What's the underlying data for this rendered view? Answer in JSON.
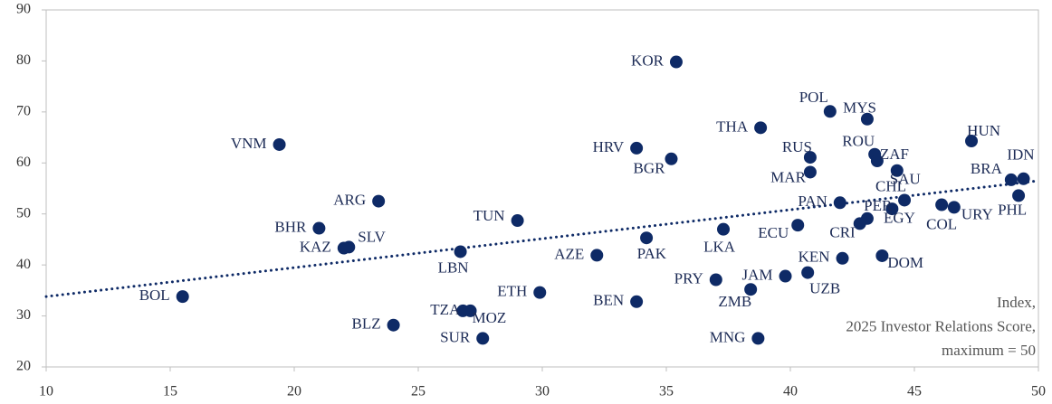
{
  "chart_data": {
    "type": "scatter",
    "points": [
      {
        "label": "KOR",
        "x": 35.4,
        "y": 79.8
      },
      {
        "label": "POL",
        "x": 41.6,
        "y": 70.1
      },
      {
        "label": "MYS",
        "x": 43.1,
        "y": 68.6
      },
      {
        "label": "THA",
        "x": 38.8,
        "y": 66.9
      },
      {
        "label": "HUN",
        "x": 47.3,
        "y": 64.3
      },
      {
        "label": "VNM",
        "x": 19.4,
        "y": 63.6
      },
      {
        "label": "HRV",
        "x": 33.8,
        "y": 62.9
      },
      {
        "label": "ROU",
        "x": 43.4,
        "y": 61.7
      },
      {
        "label": "RUS",
        "x": 40.8,
        "y": 61.1
      },
      {
        "label": "BGR",
        "x": 35.2,
        "y": 60.8
      },
      {
        "label": "ZAF",
        "x": 43.5,
        "y": 60.4
      },
      {
        "label": "IDN",
        "x": 49.4,
        "y": 56.9
      },
      {
        "label": "BRA",
        "x": 48.9,
        "y": 56.7
      },
      {
        "label": "SAU",
        "x": 44.3,
        "y": 58.5
      },
      {
        "label": "MAR",
        "x": 40.8,
        "y": 58.2
      },
      {
        "label": "ARG",
        "x": 23.4,
        "y": 52.5
      },
      {
        "label": "CHL",
        "x": 44.6,
        "y": 52.7
      },
      {
        "label": "PAN",
        "x": 42.0,
        "y": 52.2
      },
      {
        "label": "PHL",
        "x": 49.2,
        "y": 53.6
      },
      {
        "label": "COL",
        "x": 46.1,
        "y": 51.8
      },
      {
        "label": "URY",
        "x": 46.6,
        "y": 51.3
      },
      {
        "label": "PER",
        "x": 44.1,
        "y": 51.0
      },
      {
        "label": "EGY",
        "x": 43.1,
        "y": 49.1
      },
      {
        "label": "CRI",
        "x": 42.8,
        "y": 48.1
      },
      {
        "label": "TUN",
        "x": 29.0,
        "y": 48.7
      },
      {
        "label": "ECU",
        "x": 40.3,
        "y": 47.8
      },
      {
        "label": "LKA",
        "x": 37.3,
        "y": 47.0
      },
      {
        "label": "BHR",
        "x": 21.0,
        "y": 47.2
      },
      {
        "label": "PAK",
        "x": 34.2,
        "y": 45.3
      },
      {
        "label": "SLV",
        "x": 22.2,
        "y": 43.5
      },
      {
        "label": "KAZ",
        "x": 22.0,
        "y": 43.3
      },
      {
        "label": "LBN",
        "x": 26.7,
        "y": 42.6
      },
      {
        "label": "AZE",
        "x": 32.2,
        "y": 41.9
      },
      {
        "label": "KEN",
        "x": 42.1,
        "y": 41.3
      },
      {
        "label": "DOM",
        "x": 43.7,
        "y": 41.8
      },
      {
        "label": "UZB",
        "x": 40.7,
        "y": 38.5
      },
      {
        "label": "JAM",
        "x": 39.8,
        "y": 37.8
      },
      {
        "label": "PRY",
        "x": 37.0,
        "y": 37.1
      },
      {
        "label": "ZMB",
        "x": 38.4,
        "y": 35.2
      },
      {
        "label": "ETH",
        "x": 29.9,
        "y": 34.6
      },
      {
        "label": "BOL",
        "x": 15.5,
        "y": 33.8
      },
      {
        "label": "BEN",
        "x": 33.8,
        "y": 32.8
      },
      {
        "label": "TZA",
        "x": 26.8,
        "y": 31.0
      },
      {
        "label": "MOZ",
        "x": 27.1,
        "y": 31.0
      },
      {
        "label": "BLZ",
        "x": 24.0,
        "y": 28.2
      },
      {
        "label": "SUR",
        "x": 27.6,
        "y": 25.6
      },
      {
        "label": "MNG",
        "x": 38.7,
        "y": 25.6
      }
    ],
    "color": "#0e2a66",
    "trendline": {
      "x": [
        10,
        50
      ],
      "y": [
        33.8,
        56.5
      ]
    },
    "annotation": [
      "Index,",
      "2025 Investor Relations Score,",
      "maximum = 50"
    ],
    "xlim": [
      10,
      50
    ],
    "xticks": [
      10,
      15,
      20,
      25,
      30,
      35,
      40,
      45,
      50
    ],
    "ylim": [
      20,
      90
    ],
    "yticks": [
      20,
      30,
      40,
      50,
      60,
      70,
      80,
      90
    ]
  }
}
